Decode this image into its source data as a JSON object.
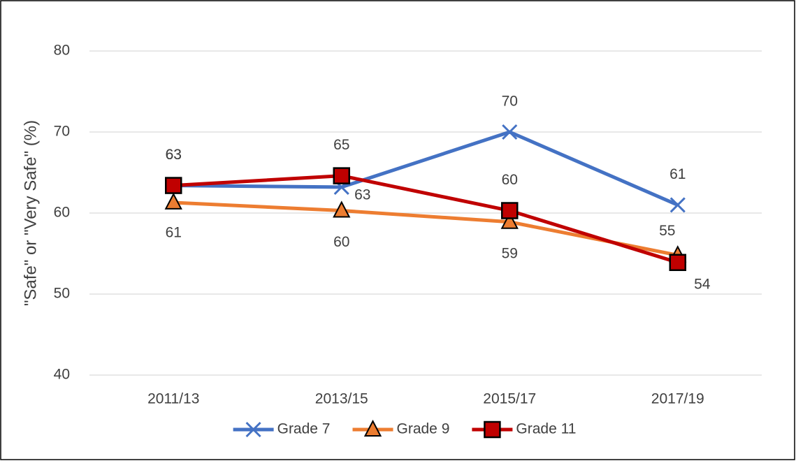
{
  "chart_data": {
    "type": "line",
    "y_label": "\"Safe\" or \"Very Safe\" (%)",
    "categories": [
      "2011/13",
      "2013/15",
      "2015/17",
      "2017/19"
    ],
    "series": [
      {
        "name": "Grade 7",
        "color": "#4472c4",
        "marker": "x",
        "values": [
          63.4,
          63.2,
          70,
          61.0
        ],
        "value_labels": [
          "63",
          "63",
          "70",
          "61"
        ]
      },
      {
        "name": "Grade 9",
        "color": "#ed7d31",
        "marker": "triangle",
        "values": [
          61.3,
          60.3,
          58.9,
          54.8
        ],
        "value_labels": [
          "61",
          "60",
          "59",
          "55"
        ]
      },
      {
        "name": "Grade 11",
        "color": "#c00000",
        "marker": "square",
        "values": [
          63.4,
          64.6,
          60.3,
          53.9
        ],
        "value_labels": [
          "63",
          "65",
          "60",
          "54"
        ]
      }
    ],
    "ylim": [
      40,
      80
    ],
    "yticks": [
      40,
      50,
      60,
      70,
      80
    ],
    "grid": true,
    "legend": "bottom"
  }
}
